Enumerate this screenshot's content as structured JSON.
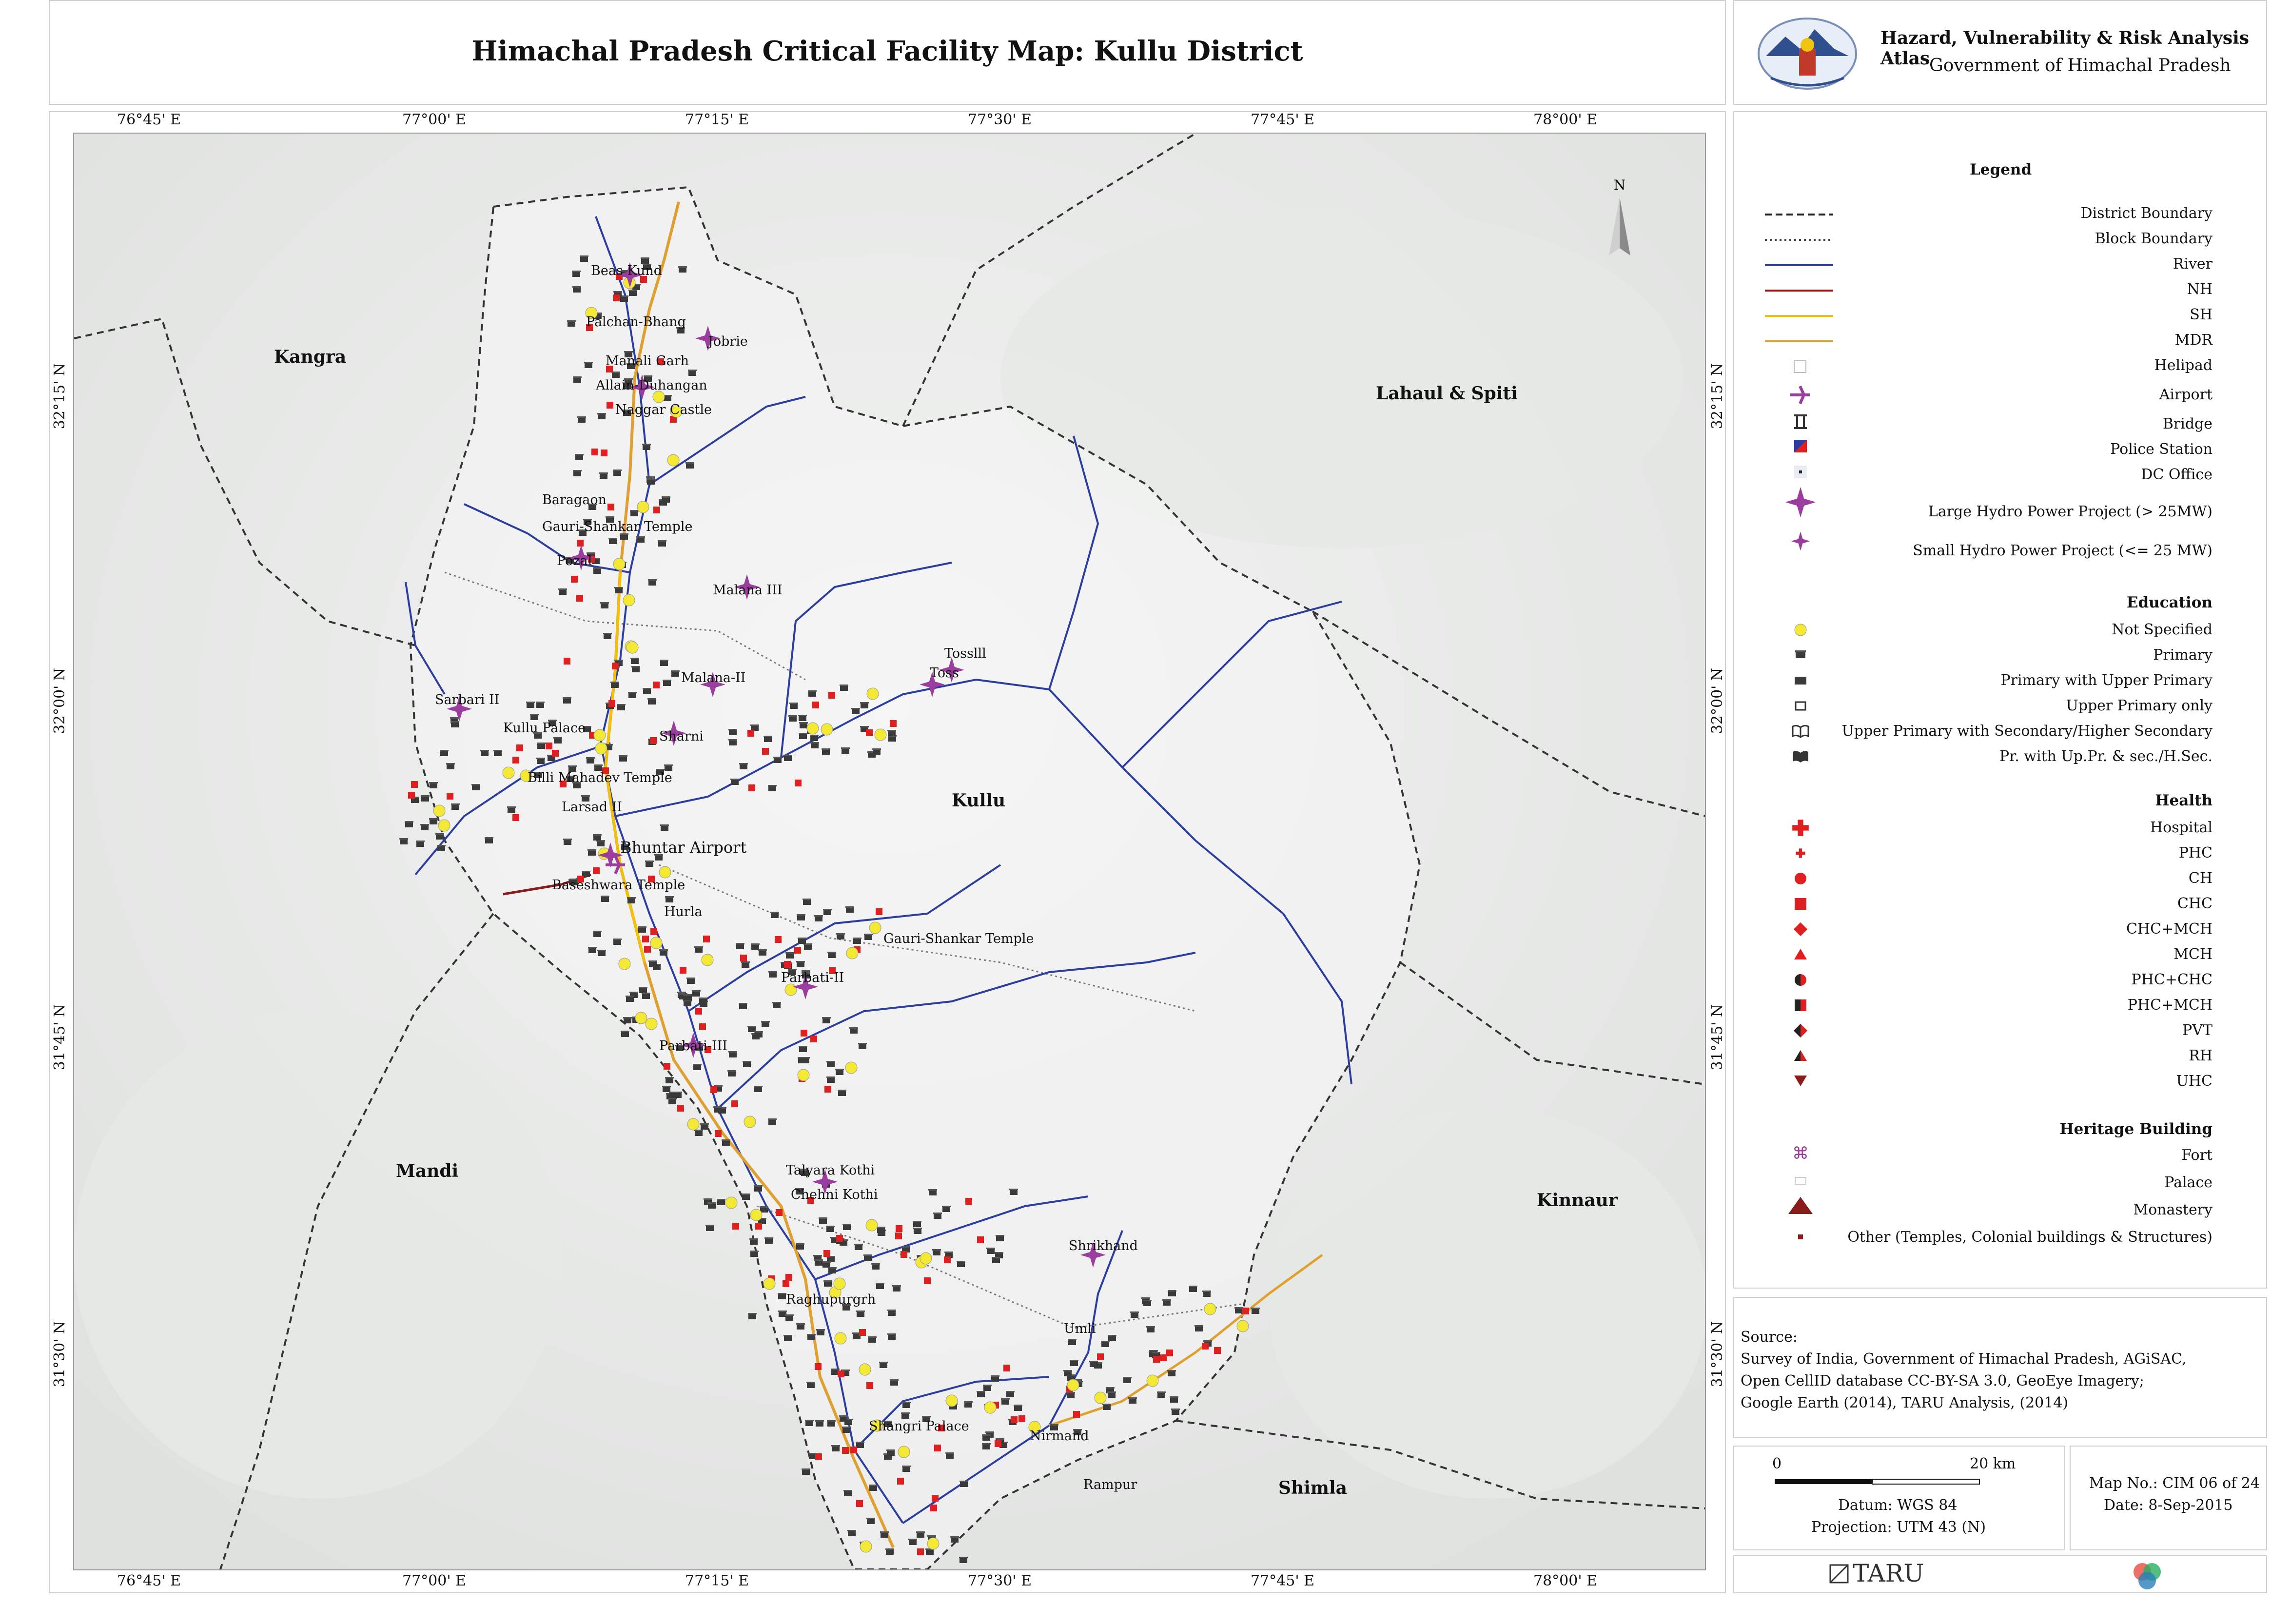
{
  "title": "Himachal Pradesh Critical Facility Map: Kullu District",
  "atlas": {
    "title": "Hazard, Vulnerability & Risk Analysis Atlas",
    "subtitle": "Government of Himachal Pradesh"
  },
  "graticule": {
    "longitudes": [
      "76°45' E",
      "77°00' E",
      "77°15' E",
      "77°30' E",
      "77°45' E",
      "78°00' E"
    ],
    "latitudes": [
      "32°15' N",
      "32°00' N",
      "31°45' N",
      "31°30' N"
    ]
  },
  "map": {
    "north_label": "N",
    "regions": [
      "Kangra",
      "Lahaul & Spiti",
      "Kullu",
      "Mandi",
      "Kinnaur",
      "Shimla"
    ],
    "places": [
      "Beas Kund",
      "Palchan-Bhang",
      "Jobrie",
      "Manali Garh",
      "Allain-Duhangan",
      "Naggar Castle",
      "Baragaon",
      "Gauri-Shankar Temple",
      "Pozal",
      "Malana III",
      "Tosslll",
      "Toss",
      "Malana-II",
      "Sarbari II",
      "Kullu Palace",
      "Sharni",
      "Billi Mahadev Temple",
      "Larsad II",
      "Bhuntar Airport",
      "Baseshwara Temple",
      "Hurla",
      "Gauri-Shankar Temple",
      "Parbati-II",
      "Parbati-III",
      "Talyara Kothi",
      "Chehni Kothi",
      "Shrikhand",
      "Raghupurgrh",
      "Umli",
      "Shangri Palace",
      "Nirmand",
      "Rampur"
    ]
  },
  "legend": {
    "title": "Legend",
    "lines": [
      {
        "label": "District Boundary",
        "style": "dashed",
        "color": "#222222"
      },
      {
        "label": "Block Boundary",
        "style": "dotted",
        "color": "#444444"
      },
      {
        "label": "River",
        "style": "solid",
        "color": "#2b3ea0"
      },
      {
        "label": "NH",
        "style": "solid",
        "color": "#8b1a1a"
      },
      {
        "label": "SH",
        "style": "solid",
        "color": "#f2c200"
      },
      {
        "label": "MDR",
        "style": "solid",
        "color": "#e0a030"
      }
    ],
    "facilities": [
      {
        "label": "Helipad",
        "icon": "helipad-icon"
      },
      {
        "label": "Airport",
        "icon": "airport-icon"
      },
      {
        "label": "Bridge",
        "icon": "bridge-icon"
      },
      {
        "label": "Police Station",
        "icon": "police-station-icon"
      },
      {
        "label": "DC Office",
        "icon": "dc-office-icon"
      },
      {
        "label": "Large Hydro Power Project (> 25MW)",
        "icon": "large-hydro-star-icon"
      },
      {
        "label": "Small Hydro Power Project (<= 25 MW)",
        "icon": "small-hydro-star-icon"
      }
    ],
    "education_heading": "Education",
    "education": [
      {
        "label": "Not Specified",
        "icon": "yellow-dot-icon"
      },
      {
        "label": "Primary",
        "icon": "primary-school-icon"
      },
      {
        "label": "Primary with Upper Primary",
        "icon": "upper-primary-school-icon"
      },
      {
        "label": "Upper Primary only",
        "icon": "upper-primary-only-icon"
      },
      {
        "label": "Upper Primary with Secondary/Higher Secondary",
        "icon": "open-book-icon"
      },
      {
        "label": "Pr. with Up.Pr. & sec./H.Sec.",
        "icon": "closed-book-icon"
      }
    ],
    "health_heading": "Health",
    "health": [
      {
        "label": "Hospital",
        "icon": "large-cross-icon"
      },
      {
        "label": "PHC",
        "icon": "small-cross-icon"
      },
      {
        "label": "CH",
        "icon": "circle-icon"
      },
      {
        "label": "CHC",
        "icon": "square-icon"
      },
      {
        "label": "CHC+MCH",
        "icon": "diamond-icon"
      },
      {
        "label": "MCH",
        "icon": "triangle-icon"
      },
      {
        "label": "PHC+CHC",
        "icon": "half-circle-icon"
      },
      {
        "label": "PHC+MCH",
        "icon": "half-square-icon"
      },
      {
        "label": "PVT",
        "icon": "half-diamond-icon"
      },
      {
        "label": "RH",
        "icon": "half-triangle-icon"
      },
      {
        "label": "UHC",
        "icon": "inverted-triangle-icon"
      }
    ],
    "heritage_heading": "Heritage Building",
    "heritage": [
      {
        "label": "Fort",
        "icon": "fort-icon"
      },
      {
        "label": "Palace",
        "icon": "palace-icon"
      },
      {
        "label": "Monastery",
        "icon": "monastery-icon"
      },
      {
        "label": "Other (Temples, Colonial buildings & Structures)",
        "icon": "temple-icon"
      }
    ]
  },
  "source": {
    "heading": "Source:",
    "lines": [
      "Survey of India, Government of Himachal Pradesh, AGiSAC,",
      "Open CellID database CC-BY-SA 3.0, GeoEye Imagery;",
      "Google Earth (2014), TARU Analysis, (2014)"
    ]
  },
  "scale": {
    "start": "0",
    "end": "20 km",
    "datum": "Datum: WGS 84",
    "projection": "Projection: UTM 43 (N)"
  },
  "map_info": {
    "map_no": "Map No.: CIM 06 of 24",
    "date": "Date: 8-Sep-2015"
  },
  "logo": {
    "name": "TARU"
  },
  "colors": {
    "river": "#2b3ea0",
    "nh": "#8b1a1a",
    "sh": "#f2c200",
    "mdr": "#e0a030",
    "hydro": "#9b3d9e",
    "health": "#e02020",
    "education_unspecified": "#f3e833"
  }
}
